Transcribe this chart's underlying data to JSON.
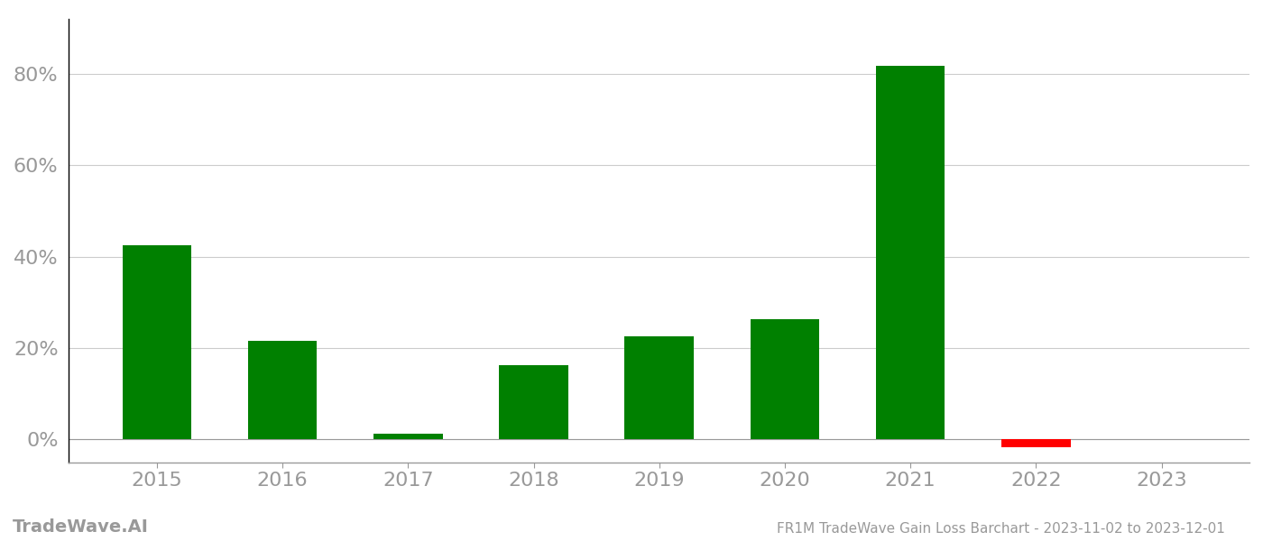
{
  "years": [
    "2015",
    "2016",
    "2017",
    "2018",
    "2019",
    "2020",
    "2021",
    "2022",
    "2023"
  ],
  "values": [
    0.425,
    0.215,
    0.013,
    0.163,
    0.225,
    0.262,
    0.818,
    -0.018,
    0.0
  ],
  "colors": [
    "#008000",
    "#008000",
    "#008000",
    "#008000",
    "#008000",
    "#008000",
    "#008000",
    "#ff0000",
    "#008000"
  ],
  "title": "FR1M TradeWave Gain Loss Barchart - 2023-11-02 to 2023-12-01",
  "watermark": "TradeWave.AI",
  "ylim_min": -0.05,
  "ylim_max": 0.92,
  "background_color": "#ffffff",
  "grid_color": "#cccccc",
  "axis_label_color": "#999999",
  "title_color": "#999999",
  "watermark_color": "#999999",
  "bar_width": 0.55,
  "yticks": [
    0.0,
    0.2,
    0.4,
    0.6,
    0.8
  ],
  "ytick_labels": [
    "0%",
    "20%",
    "40%",
    "60%",
    "80%"
  ],
  "spine_color": "#999999",
  "left_spine_color": "#000000"
}
